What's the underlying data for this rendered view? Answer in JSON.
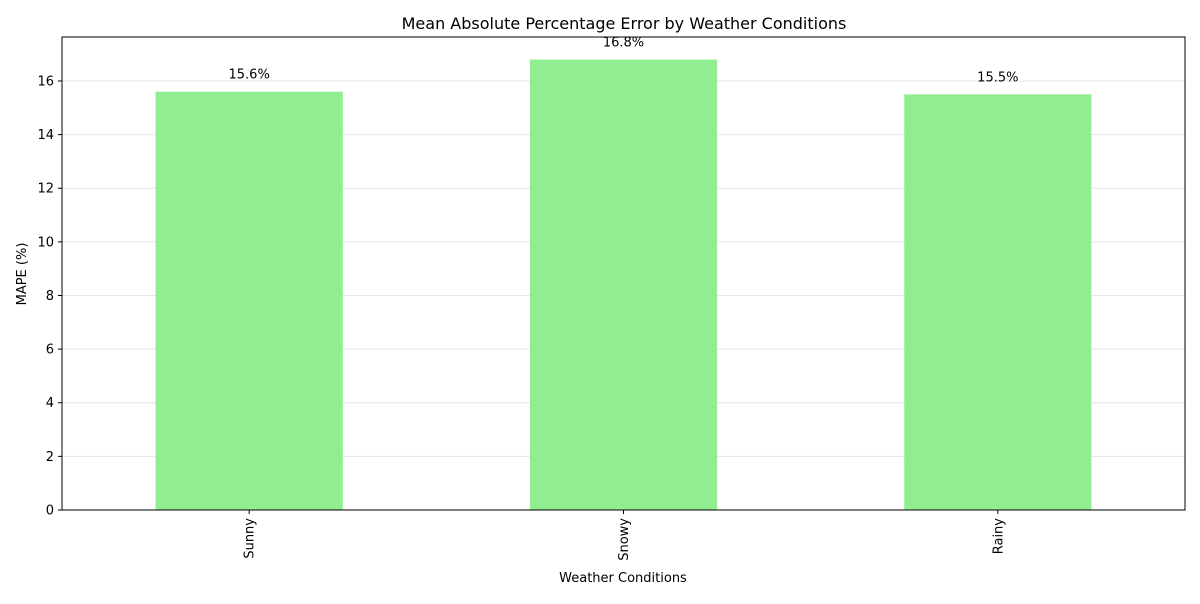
{
  "chart_data": {
    "type": "bar",
    "title": "Mean Absolute Percentage Error by Weather Conditions",
    "xlabel": "Weather Conditions",
    "ylabel": "MAPE (%)",
    "categories": [
      "Sunny",
      "Snowy",
      "Rainy"
    ],
    "values": [
      15.6,
      16.8,
      15.5
    ],
    "data_labels": [
      "15.6%",
      "16.8%",
      "15.5%"
    ],
    "ylim": [
      0,
      17.64
    ],
    "yticks": [
      0,
      2,
      4,
      6,
      8,
      10,
      12,
      14,
      16
    ],
    "ytick_labels": [
      "0",
      "2",
      "4",
      "6",
      "8",
      "10",
      "12",
      "14",
      "16"
    ],
    "grid": "y-axis",
    "x_tick_rotation": "vertical",
    "bar_color": "#90ee90",
    "grid_color": "#e6e6e6"
  }
}
